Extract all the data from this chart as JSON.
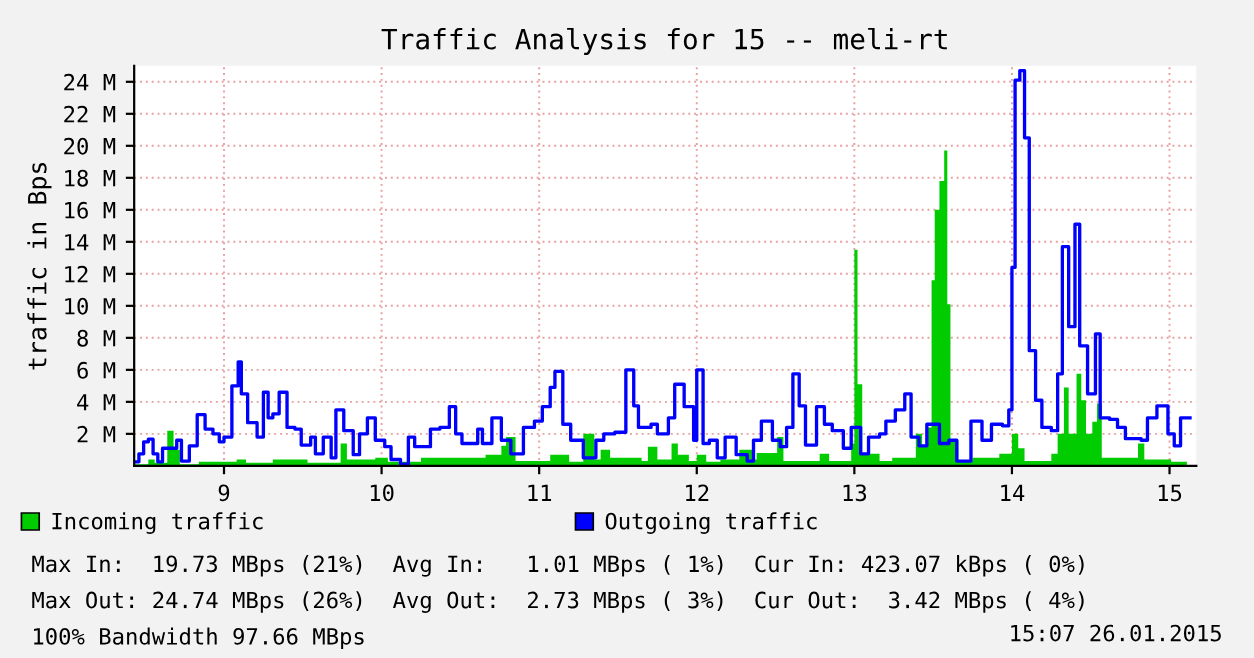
{
  "chart_data": {
    "type": "step",
    "title": "Traffic Analysis for 15 -- meli-rt",
    "ylabel": "traffic in Bps",
    "xlim": [
      8.43,
      15.17
    ],
    "xticks": [
      9,
      10,
      11,
      12,
      13,
      14,
      15
    ],
    "ylim": [
      0,
      25
    ],
    "yticks": [
      {
        "value": 2,
        "label": "2 M"
      },
      {
        "value": 4,
        "label": "4 M"
      },
      {
        "value": 6,
        "label": "6 M"
      },
      {
        "value": 8,
        "label": "8 M"
      },
      {
        "value": 10,
        "label": "10 M"
      },
      {
        "value": 12,
        "label": "12 M"
      },
      {
        "value": 14,
        "label": "14 M"
      },
      {
        "value": 16,
        "label": "16 M"
      },
      {
        "value": 18,
        "label": "18 M"
      },
      {
        "value": 20,
        "label": "20 M"
      },
      {
        "value": 22,
        "label": "22 M"
      },
      {
        "value": 24,
        "label": "24 M"
      }
    ],
    "grid": true,
    "legend": "bottom left",
    "series": [
      {
        "name": "Incoming traffic",
        "type": "area",
        "color": "#00cc00",
        "x": [
          8.43,
          8.52,
          8.56,
          8.64,
          8.68,
          8.72,
          8.84,
          9.08,
          9.14,
          9.31,
          9.53,
          9.74,
          9.78,
          9.96,
          10.04,
          10.25,
          10.66,
          10.76,
          10.79,
          10.85,
          11.07,
          11.19,
          11.28,
          11.35,
          11.39,
          11.45,
          11.65,
          11.69,
          11.75,
          11.84,
          11.88,
          11.95,
          12.0,
          12.06,
          12.15,
          12.27,
          12.36,
          12.38,
          12.51,
          12.55,
          12.78,
          12.84,
          12.98,
          13.0,
          13.02,
          13.05,
          13.16,
          13.24,
          13.39,
          13.43,
          13.46,
          13.49,
          13.51,
          13.54,
          13.57,
          13.59,
          13.61,
          13.66,
          13.75,
          13.92,
          14.0,
          14.04,
          14.08,
          14.25,
          14.29,
          14.33,
          14.36,
          14.41,
          14.44,
          14.47,
          14.51,
          14.54,
          14.57,
          14.8,
          14.84,
          15.01,
          15.11
        ],
        "values": [
          0.1,
          0.4,
          0.2,
          2.2,
          1.0,
          0.1,
          0.25,
          0.4,
          0.2,
          0.4,
          0.2,
          1.4,
          0.4,
          0.5,
          0.25,
          0.5,
          0.7,
          1.25,
          1.8,
          0.3,
          0.7,
          0.25,
          2.0,
          0.4,
          1.0,
          0.5,
          0.3,
          1.2,
          0.4,
          1.4,
          0.7,
          0.3,
          0.7,
          0.25,
          0.4,
          1.0,
          0.4,
          0.8,
          1.8,
          0.3,
          0.75,
          0.3,
          1.4,
          13.5,
          5.1,
          0.75,
          0.3,
          0.5,
          2.0,
          1.2,
          2.4,
          11.6,
          16.0,
          17.8,
          19.7,
          10.1,
          1.6,
          0.3,
          0.5,
          0.75,
          2.0,
          1.1,
          0.3,
          0.75,
          2.0,
          4.9,
          2.0,
          5.75,
          4.1,
          2.0,
          2.75,
          3.9,
          0.5,
          1.4,
          0.4,
          0.25,
          0.3
        ]
      },
      {
        "name": "Outgoing traffic",
        "color": "#0000ff",
        "x": [
          8.43,
          8.46,
          8.49,
          8.52,
          8.55,
          8.58,
          8.61,
          8.7,
          8.73,
          8.78,
          8.83,
          8.88,
          8.93,
          8.97,
          9.0,
          9.05,
          9.09,
          9.11,
          9.15,
          9.21,
          9.25,
          9.28,
          9.31,
          9.35,
          9.4,
          9.45,
          9.49,
          9.55,
          9.58,
          9.63,
          9.68,
          9.71,
          9.76,
          9.82,
          9.86,
          9.91,
          9.96,
          10.02,
          10.06,
          10.12,
          10.17,
          10.21,
          10.31,
          10.37,
          10.43,
          10.47,
          10.51,
          10.61,
          10.64,
          10.7,
          10.76,
          10.82,
          10.9,
          10.97,
          11.02,
          11.07,
          11.1,
          11.15,
          11.2,
          11.28,
          11.36,
          11.41,
          11.48,
          11.55,
          11.6,
          11.63,
          11.71,
          11.75,
          11.82,
          11.86,
          11.92,
          11.98,
          12.0,
          12.04,
          12.08,
          12.13,
          12.18,
          12.25,
          12.32,
          12.36,
          12.41,
          12.48,
          12.53,
          12.57,
          12.61,
          12.65,
          12.69,
          12.76,
          12.81,
          12.86,
          12.93,
          12.98,
          13.04,
          13.09,
          13.16,
          13.2,
          13.26,
          13.32,
          13.36,
          13.41,
          13.46,
          13.54,
          13.6,
          13.65,
          13.74,
          13.81,
          13.87,
          13.94,
          13.98,
          14.0,
          14.02,
          14.05,
          14.08,
          14.11,
          14.15,
          14.19,
          14.25,
          14.29,
          14.32,
          14.36,
          14.4,
          14.43,
          14.48,
          14.53,
          14.56,
          14.62,
          14.67,
          14.72,
          14.82,
          14.86,
          14.92,
          14.99,
          15.03,
          15.07,
          15.13
        ],
        "values": [
          0.25,
          0.75,
          1.5,
          1.67,
          0.75,
          0.25,
          1.1,
          1.6,
          0.3,
          1.25,
          3.2,
          2.3,
          2.0,
          1.5,
          1.8,
          5.0,
          6.5,
          4.5,
          2.7,
          1.8,
          4.6,
          3.0,
          3.25,
          4.6,
          2.4,
          2.3,
          1.3,
          1.8,
          0.75,
          1.8,
          0.5,
          3.5,
          2.2,
          0.7,
          2.0,
          3.0,
          1.6,
          1.2,
          0.4,
          0.1,
          1.8,
          1.2,
          2.3,
          2.4,
          3.7,
          2.0,
          1.4,
          2.3,
          1.4,
          3.0,
          1.6,
          0.75,
          2.4,
          2.8,
          3.7,
          4.9,
          5.9,
          2.6,
          1.6,
          0.5,
          1.6,
          2.0,
          2.1,
          6.0,
          3.75,
          2.4,
          2.6,
          2.0,
          3.0,
          5.1,
          3.7,
          1.6,
          6.0,
          1.4,
          1.6,
          0.5,
          1.8,
          0.7,
          0.3,
          1.6,
          2.8,
          1.6,
          1.2,
          2.4,
          5.75,
          3.75,
          1.3,
          3.7,
          2.6,
          2.2,
          1.1,
          2.4,
          0.75,
          1.8,
          2.0,
          2.8,
          3.5,
          4.5,
          1.8,
          1.25,
          2.6,
          1.4,
          1.6,
          0.3,
          2.8,
          1.6,
          2.6,
          2.5,
          3.5,
          12.4,
          24.1,
          24.7,
          20.5,
          7.2,
          4.1,
          2.4,
          2.2,
          5.75,
          13.7,
          8.7,
          15.1,
          7.5,
          4.5,
          8.25,
          3.0,
          2.9,
          2.4,
          1.7,
          1.6,
          3.0,
          3.75,
          2.0,
          1.25,
          3.0,
          3.0
        ]
      }
    ],
    "annotations": [
      "Max In:  19.73 MBps (21%)  Avg In:   1.01 MBps ( 1%)  Cur In: 423.07 kBps ( 0%)",
      "Max Out: 24.74 MBps (26%)  Avg Out:  2.73 MBps ( 3%)  Cur Out:  3.42 MBps ( 4%)",
      "100% Bandwidth 97.66 MBps",
      "15:07 26.01.2015"
    ]
  }
}
